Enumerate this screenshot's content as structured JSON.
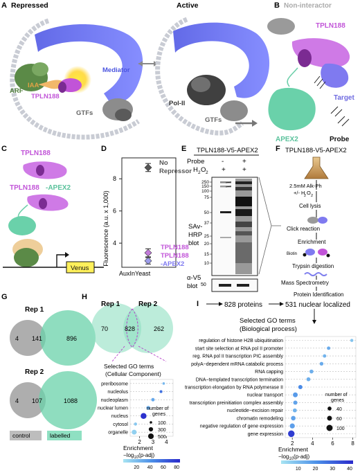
{
  "panels": {
    "A": "A",
    "B": "B",
    "C": "C",
    "D": "D",
    "E": "E",
    "F": "F",
    "G": "G",
    "H": "H",
    "I": "I"
  },
  "panelA": {
    "repressed": "Repressed",
    "active": "Active",
    "mediator": "Mediator",
    "arf": "ARF",
    "iaa": "IAA",
    "tpln188": "TPLN188",
    "gtfs": "GTFs",
    "pol2": "Pol-II",
    "gtfs2": "GTFs"
  },
  "panelB": {
    "noninteractor": "Non-interactor",
    "tpln188": "TPLN188",
    "target": "Target",
    "apex2": "APEX2",
    "probe": "Probe"
  },
  "panelC": {
    "tpln188": "TPLN188",
    "tpln188apex": "TPLN188",
    "apex2_suffix": "-APEX2",
    "venus": "Venus"
  },
  "panelD": {
    "ylabel": "Fluorescence (a.u. x 1,000)",
    "xlabel": "AuxInYeast",
    "ticks": [
      "4",
      "6",
      "8"
    ],
    "norepressor_1": "No",
    "norepressor_2": "Repressor",
    "tpln188": "TPLN188",
    "tpln188apex_1": "TPLN188",
    "tpln188apex_2": "-APEX2"
  },
  "panelE": {
    "title": "TPLN188-V5-APEX2",
    "probe": "Probe",
    "h2o2": "H",
    "h2o2_2": "2",
    "h2o2_o": "O",
    "h2o2_2b": "2",
    "minus": "-",
    "plus": "+",
    "plus2": "+",
    "plus3": "+",
    "mw": [
      "250",
      "150",
      "100",
      "75",
      "50",
      "37",
      "25",
      "20",
      "15",
      "10"
    ],
    "sav_1": "SAv-",
    "sav_2": "HRP",
    "sav_3": "blot",
    "v5_1": "α-V5",
    "v5_2": "blot",
    "mw50": "50"
  },
  "panelF": {
    "title": "TPLN188-V5-APEX2",
    "step_alk": "2.5mM Alk-Ph",
    "step_h2o2": "+/- H",
    "sub2": "2",
    "step_o": "O",
    "sub2b": "2",
    "lysis": "Cell lysis",
    "click": "Click reaction",
    "enrich": "Enrichment",
    "biotin": "Biotin",
    "trypsin": "Trypsin digestion",
    "ms": "Mass Spectrometry",
    "protid": "Protein Identification"
  },
  "panelG": {
    "rep1": "Rep 1",
    "rep1_left": "4",
    "rep1_mid": "141",
    "rep1_right": "896",
    "rep2": "Rep 2",
    "rep2_left": "4",
    "rep2_mid": "107",
    "rep2_right": "1088",
    "legend_control": "control",
    "legend_labelled": "labelled"
  },
  "panelH": {
    "rep1": "Rep 1",
    "rep2": "Rep 2",
    "left": "70",
    "mid": "828",
    "right": "262",
    "go_title": "Selected GO terms",
    "go_sub": "(Cellular Component)",
    "legend_title_1": "number of",
    "legend_title_2": "genes",
    "size_labels": [
      "100",
      "300",
      "500"
    ],
    "xlabel": "Enrichment",
    "xlabel2": "−log",
    "xlabel2_sub": "10",
    "xlabel2_end": "(p-adj)",
    "colorbar_ticks": [
      "20",
      "40",
      "60",
      "80"
    ]
  },
  "panelI": {
    "step1": "828 proteins",
    "step2": "531 nuclear localized",
    "go_title": "Selected GO terms",
    "go_sub": "(Biological process)",
    "legend_title_1": "number of",
    "legend_title_2": "genes",
    "size_labels": [
      "40",
      "60",
      "100"
    ],
    "xlabel": "Enrichment",
    "xlabel2": "−log",
    "xlabel2_sub": "10",
    "xlabel2_end": "(p-adj)",
    "colorbar_ticks": [
      "10",
      "20",
      "30",
      "40"
    ]
  },
  "chart_data": [
    {
      "type": "scatter",
      "title": "",
      "xlabel": "AuxInYeast",
      "ylabel": "Fluorescence (a.u. x 1,000)",
      "ylim": [
        2.5,
        9.3
      ],
      "yticks": [
        4,
        6,
        8
      ],
      "series": [
        {
          "name": "No Repressor",
          "values": [
            8.7
          ],
          "error": [
            0.25
          ],
          "color": "#555555"
        },
        {
          "name": "TPLN188",
          "values": [
            3.4
          ],
          "error": [
            0.25
          ],
          "color": "#c17ad9"
        },
        {
          "name": "TPLN188-APEX2",
          "values": [
            2.9
          ],
          "error": [
            0.2
          ],
          "color": "#9d9dec"
        }
      ]
    },
    {
      "type": "scatter",
      "title": "Selected GO terms",
      "subtitle": "(Cellular Component)",
      "xlabel": "Enrichment",
      "xlim": [
        1.3,
        4.5
      ],
      "xticks": [
        2,
        3,
        4
      ],
      "categories": [
        "preribosome",
        "nucleolus",
        "nucleoplasm",
        "nuclear lumen",
        "nucleus",
        "cytosol",
        "organelle"
      ],
      "enrichment": [
        3.8,
        3.6,
        3.0,
        2.65,
        2.3,
        1.7,
        1.6
      ],
      "neglog10_padj": [
        22,
        55,
        30,
        28,
        82,
        14,
        10
      ],
      "n_genes": [
        45,
        130,
        190,
        240,
        560,
        160,
        380
      ]
    },
    {
      "type": "scatter",
      "title": "Selected GO terms",
      "subtitle": "(Biological process)",
      "xlabel": "Enrichment",
      "xlim": [
        1.3,
        8.3
      ],
      "xticks": [
        2,
        4,
        6,
        8
      ],
      "categories": [
        "regulation of histone H2B ubiquitination",
        "start site selection at RNA pol II promoter",
        "reg. RNA pol II transcription PIC assembly",
        "polyA−dependent mRNA catabolic process",
        "RNA capping",
        "DNA−templated transcription termination",
        "transcription elongation by RNA polymerase II",
        "nuclear transport",
        "transcription preinitiation complex assembly",
        "nucleotide−excision repair",
        "chromatin remodeling",
        "negative regulation of gene expression",
        "gene expression"
      ],
      "enrichment": [
        7.9,
        5.6,
        5.2,
        4.9,
        3.9,
        3.6,
        2.8,
        2.3,
        2.3,
        2.25,
        2.1,
        2.0,
        1.9
      ],
      "neglog10_padj": [
        8,
        14,
        12,
        14,
        13,
        13,
        22,
        18,
        16,
        12,
        16,
        17,
        38
      ],
      "n_genes": [
        25,
        30,
        30,
        35,
        40,
        40,
        45,
        60,
        45,
        40,
        55,
        65,
        110
      ]
    }
  ]
}
